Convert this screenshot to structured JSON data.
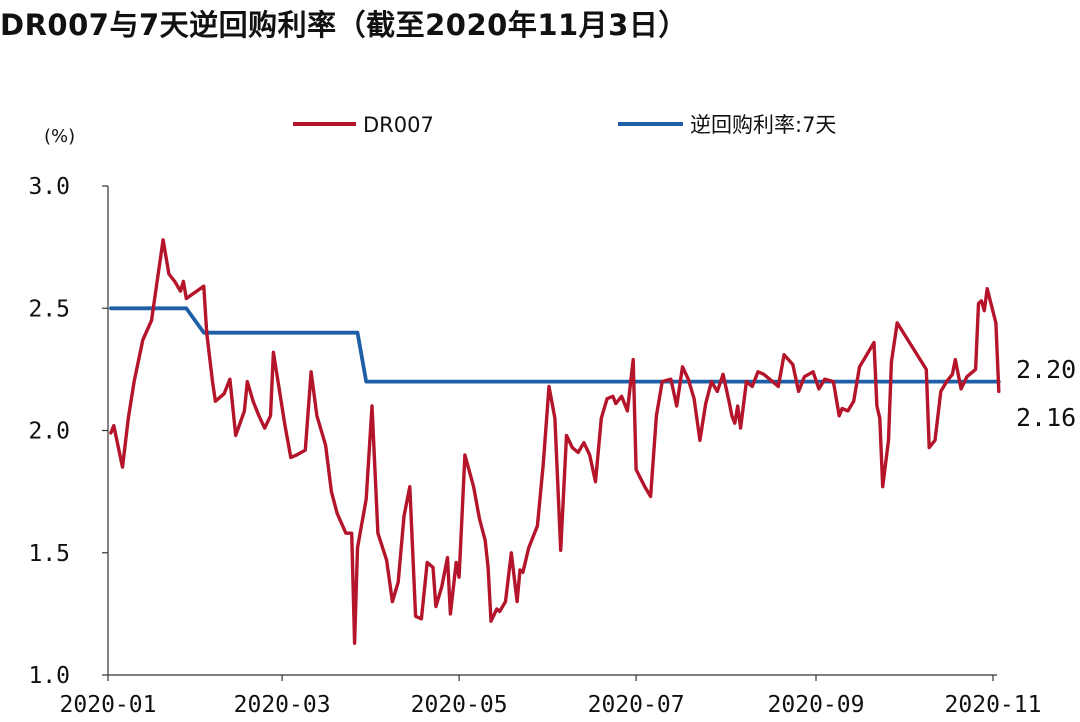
{
  "chart_data": {
    "type": "line",
    "title": "DR007与7天逆回购利率（截至2020年11月3日）",
    "y_unit": "(%)",
    "ylim": [
      1.0,
      3.0
    ],
    "y_ticks": [
      "1.0",
      "1.5",
      "2.0",
      "2.5",
      "3.0"
    ],
    "x_ticks": [
      "2020-01",
      "2020-03",
      "2020-05",
      "2020-07",
      "2020-09",
      "2020-11"
    ],
    "x_tick_dates": [
      "2020-01-01",
      "2020-03-01",
      "2020-05-01",
      "2020-07-01",
      "2020-09-01",
      "2020-11-01"
    ],
    "legend_position": "top-center",
    "grid": false,
    "end_labels": [
      "2.20",
      "2.16"
    ],
    "series": [
      {
        "name": "DR007",
        "color": "#B5152B",
        "points": [
          [
            "2020-01-02",
            1.99
          ],
          [
            "2020-01-03",
            2.02
          ],
          [
            "2020-01-06",
            1.85
          ],
          [
            "2020-01-08",
            2.05
          ],
          [
            "2020-01-10",
            2.2
          ],
          [
            "2020-01-13",
            2.37
          ],
          [
            "2020-01-16",
            2.45
          ],
          [
            "2020-01-20",
            2.78
          ],
          [
            "2020-01-22",
            2.64
          ],
          [
            "2020-01-24",
            2.61
          ],
          [
            "2020-01-26",
            2.57
          ],
          [
            "2020-01-27",
            2.61
          ],
          [
            "2020-01-28",
            2.54
          ],
          [
            "2020-02-03",
            2.59
          ],
          [
            "2020-02-04",
            2.4
          ],
          [
            "2020-02-06",
            2.2
          ],
          [
            "2020-02-07",
            2.12
          ],
          [
            "2020-02-10",
            2.15
          ],
          [
            "2020-02-12",
            2.21
          ],
          [
            "2020-02-14",
            1.98
          ],
          [
            "2020-02-17",
            2.08
          ],
          [
            "2020-02-18",
            2.2
          ],
          [
            "2020-02-20",
            2.12
          ],
          [
            "2020-02-22",
            2.06
          ],
          [
            "2020-02-24",
            2.01
          ],
          [
            "2020-02-26",
            2.06
          ],
          [
            "2020-02-27",
            2.32
          ],
          [
            "2020-03-02",
            2.02
          ],
          [
            "2020-03-04",
            1.89
          ],
          [
            "2020-03-06",
            1.9
          ],
          [
            "2020-03-09",
            1.92
          ],
          [
            "2020-03-11",
            2.24
          ],
          [
            "2020-03-13",
            2.06
          ],
          [
            "2020-03-16",
            1.94
          ],
          [
            "2020-03-18",
            1.75
          ],
          [
            "2020-03-20",
            1.66
          ],
          [
            "2020-03-23",
            1.58
          ],
          [
            "2020-03-25",
            1.58
          ],
          [
            "2020-03-26",
            1.13
          ],
          [
            "2020-03-27",
            1.52
          ],
          [
            "2020-03-30",
            1.72
          ],
          [
            "2020-04-01",
            2.1
          ],
          [
            "2020-04-03",
            1.58
          ],
          [
            "2020-04-06",
            1.47
          ],
          [
            "2020-04-08",
            1.3
          ],
          [
            "2020-04-10",
            1.38
          ],
          [
            "2020-04-12",
            1.65
          ],
          [
            "2020-04-14",
            1.77
          ],
          [
            "2020-04-16",
            1.24
          ],
          [
            "2020-04-18",
            1.23
          ],
          [
            "2020-04-20",
            1.46
          ],
          [
            "2020-04-22",
            1.44
          ],
          [
            "2020-04-23",
            1.28
          ],
          [
            "2020-04-25",
            1.36
          ],
          [
            "2020-04-27",
            1.48
          ],
          [
            "2020-04-28",
            1.25
          ],
          [
            "2020-04-30",
            1.46
          ],
          [
            "2020-05-01",
            1.4
          ],
          [
            "2020-05-03",
            1.9
          ],
          [
            "2020-05-06",
            1.77
          ],
          [
            "2020-05-08",
            1.64
          ],
          [
            "2020-05-10",
            1.55
          ],
          [
            "2020-05-11",
            1.44
          ],
          [
            "2020-05-12",
            1.22
          ],
          [
            "2020-05-14",
            1.27
          ],
          [
            "2020-05-15",
            1.26
          ],
          [
            "2020-05-17",
            1.3
          ],
          [
            "2020-05-19",
            1.5
          ],
          [
            "2020-05-21",
            1.3
          ],
          [
            "2020-05-22",
            1.43
          ],
          [
            "2020-05-23",
            1.42
          ],
          [
            "2020-05-25",
            1.52
          ],
          [
            "2020-05-28",
            1.61
          ],
          [
            "2020-05-30",
            1.86
          ],
          [
            "2020-06-01",
            2.18
          ],
          [
            "2020-06-03",
            2.05
          ],
          [
            "2020-06-05",
            1.51
          ],
          [
            "2020-06-07",
            1.98
          ],
          [
            "2020-06-09",
            1.93
          ],
          [
            "2020-06-11",
            1.91
          ],
          [
            "2020-06-13",
            1.95
          ],
          [
            "2020-06-15",
            1.9
          ],
          [
            "2020-06-17",
            1.79
          ],
          [
            "2020-06-19",
            2.05
          ],
          [
            "2020-06-21",
            2.13
          ],
          [
            "2020-06-23",
            2.14
          ],
          [
            "2020-06-24",
            2.11
          ],
          [
            "2020-06-26",
            2.14
          ],
          [
            "2020-06-28",
            2.08
          ],
          [
            "2020-06-30",
            2.29
          ],
          [
            "2020-07-01",
            1.84
          ],
          [
            "2020-07-04",
            1.77
          ],
          [
            "2020-07-06",
            1.73
          ],
          [
            "2020-07-08",
            2.06
          ],
          [
            "2020-07-10",
            2.2
          ],
          [
            "2020-07-13",
            2.21
          ],
          [
            "2020-07-15",
            2.1
          ],
          [
            "2020-07-17",
            2.26
          ],
          [
            "2020-07-19",
            2.21
          ],
          [
            "2020-07-21",
            2.13
          ],
          [
            "2020-07-23",
            1.96
          ],
          [
            "2020-07-25",
            2.11
          ],
          [
            "2020-07-27",
            2.2
          ],
          [
            "2020-07-29",
            2.16
          ],
          [
            "2020-07-31",
            2.23
          ],
          [
            "2020-08-02",
            2.12
          ],
          [
            "2020-08-03",
            2.06
          ],
          [
            "2020-08-04",
            2.03
          ],
          [
            "2020-08-05",
            2.1
          ],
          [
            "2020-08-06",
            2.01
          ],
          [
            "2020-08-08",
            2.2
          ],
          [
            "2020-08-10",
            2.18
          ],
          [
            "2020-08-12",
            2.24
          ],
          [
            "2020-08-14",
            2.23
          ],
          [
            "2020-08-17",
            2.2
          ],
          [
            "2020-08-19",
            2.18
          ],
          [
            "2020-08-21",
            2.31
          ],
          [
            "2020-08-24",
            2.27
          ],
          [
            "2020-08-26",
            2.16
          ],
          [
            "2020-08-28",
            2.22
          ],
          [
            "2020-08-31",
            2.24
          ],
          [
            "2020-09-02",
            2.17
          ],
          [
            "2020-09-04",
            2.21
          ],
          [
            "2020-09-07",
            2.2
          ],
          [
            "2020-09-09",
            2.06
          ],
          [
            "2020-09-10",
            2.09
          ],
          [
            "2020-09-12",
            2.08
          ],
          [
            "2020-09-14",
            2.12
          ],
          [
            "2020-09-16",
            2.26
          ],
          [
            "2020-09-18",
            2.3
          ],
          [
            "2020-09-21",
            2.36
          ],
          [
            "2020-09-22",
            2.1
          ],
          [
            "2020-09-23",
            2.05
          ],
          [
            "2020-09-24",
            1.77
          ],
          [
            "2020-09-26",
            1.96
          ],
          [
            "2020-09-27",
            2.28
          ],
          [
            "2020-09-29",
            2.44
          ],
          [
            "2020-10-09",
            2.25
          ],
          [
            "2020-10-10",
            1.93
          ],
          [
            "2020-10-12",
            1.96
          ],
          [
            "2020-10-14",
            2.16
          ],
          [
            "2020-10-16",
            2.2
          ],
          [
            "2020-10-18",
            2.23
          ],
          [
            "2020-10-19",
            2.29
          ],
          [
            "2020-10-21",
            2.17
          ],
          [
            "2020-10-23",
            2.22
          ],
          [
            "2020-10-26",
            2.25
          ],
          [
            "2020-10-27",
            2.52
          ],
          [
            "2020-10-28",
            2.53
          ],
          [
            "2020-10-29",
            2.49
          ],
          [
            "2020-10-30",
            2.58
          ],
          [
            "2020-11-02",
            2.44
          ],
          [
            "2020-11-03",
            2.16
          ]
        ]
      },
      {
        "name": "逆回购利率:7天",
        "color": "#1F5FA8",
        "points": [
          [
            "2020-01-02",
            2.5
          ],
          [
            "2020-01-28",
            2.5
          ],
          [
            "2020-02-03",
            2.4
          ],
          [
            "2020-03-27",
            2.4
          ],
          [
            "2020-03-30",
            2.2
          ],
          [
            "2020-11-03",
            2.2
          ]
        ]
      }
    ]
  }
}
